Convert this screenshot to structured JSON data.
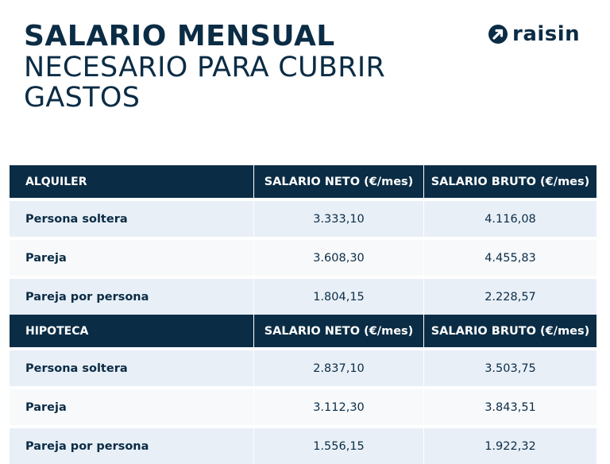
{
  "title": {
    "line1": "SALARIO MENSUAL",
    "line2": "NECESARIO PARA CUBRIR",
    "line3": "GASTOS"
  },
  "logo": {
    "text": "raisin",
    "icon": "raisin-arrow-logo-icon"
  },
  "colors": {
    "navy": "#0b2c45",
    "row_shade": "#e8eff7",
    "row_plain": "#f7f9fb"
  },
  "sections": [
    {
      "header": "ALQUILER",
      "col_neto": "SALARIO NETO (€/mes)",
      "col_bruto": "SALARIO BRUTO (€/mes)",
      "rows": [
        {
          "label": "Persona soltera",
          "neto": "3.333,10",
          "bruto": "4.116,08"
        },
        {
          "label": "Pareja",
          "neto": "3.608,30",
          "bruto": "4.455,83"
        },
        {
          "label": "Pareja por persona",
          "neto": "1.804,15",
          "bruto": "2.228,57"
        }
      ]
    },
    {
      "header": "HIPOTECA",
      "col_neto": "SALARIO NETO (€/mes)",
      "col_bruto": "SALARIO BRUTO (€/mes)",
      "rows": [
        {
          "label": "Persona soltera",
          "neto": "2.837,10",
          "bruto": "3.503,75"
        },
        {
          "label": "Pareja",
          "neto": "3.112,30",
          "bruto": "3.843,51"
        },
        {
          "label": "Pareja por persona",
          "neto": "1.556,15",
          "bruto": "1.922,32"
        }
      ]
    }
  ]
}
